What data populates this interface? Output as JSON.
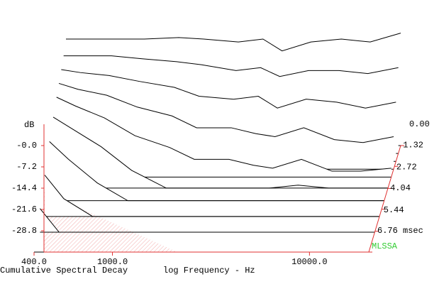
{
  "chart_data": {
    "type": "waterfall",
    "title": "Cumulative Spectral Decay",
    "x_label": "log Frequency - Hz",
    "y_label": "dB",
    "brand": "MLSSA",
    "log_x": true,
    "x": [
      400,
      500,
      700,
      1000,
      1500,
      2000,
      3000,
      4000,
      5000,
      7000,
      10000,
      14000,
      20000
    ],
    "xlim": [
      400,
      20000
    ],
    "xticks": [
      {
        "value": 400,
        "label": "400.0"
      },
      {
        "value": 1000,
        "label": "1000.0"
      },
      {
        "value": 10000,
        "label": "10000.0"
      }
    ],
    "ylim": [
      -36,
      7.2
    ],
    "yticks": [
      {
        "value": 0,
        "label": "-0.0"
      },
      -7.2,
      -14.4,
      -21.6,
      -28.8
    ],
    "zlim": [
      0,
      6.76
    ],
    "zticks": [
      {
        "value": 0,
        "label": "0.00"
      },
      1.32,
      2.72,
      4.04,
      5.44,
      {
        "value": 6.76,
        "label": "6.76 msec"
      }
    ],
    "axis_color": "#e03030",
    "line_color": "#000000",
    "series": [
      {
        "time": 0,
        "values": [
          0,
          0,
          0,
          0,
          0.5,
          0,
          -1,
          0,
          -4,
          -1,
          0,
          -1,
          2
        ]
      },
      {
        "time": 0.5,
        "values": [
          -3,
          -3,
          -3,
          -4,
          -5,
          -6,
          -8,
          -7,
          -10,
          -8,
          -8,
          -9,
          -7
        ]
      },
      {
        "time": 1.0,
        "values": [
          -5,
          -6,
          -7,
          -9,
          -11,
          -14,
          -15,
          -14,
          -18,
          -15,
          -16,
          -18,
          -16
        ]
      },
      {
        "time": 1.5,
        "values": [
          -7,
          -9,
          -11,
          -15,
          -18,
          -22,
          -22,
          -24,
          -25,
          -22,
          -26,
          -27,
          -25
        ]
      },
      {
        "time": 2.0,
        "values": [
          -9,
          -12,
          -16,
          -22,
          -26,
          -30,
          -30,
          -32,
          -33,
          -30,
          -34,
          -34,
          -33
        ]
      },
      {
        "time": 2.7,
        "values": [
          -12,
          -16,
          -22,
          -30,
          -36,
          -36,
          -36,
          -36,
          -36,
          -35,
          -36,
          -36,
          -36
        ]
      },
      {
        "time": 3.5,
        "values": [
          -16,
          -22,
          -30,
          -36,
          -36,
          -36,
          -36,
          -36,
          -36,
          -36,
          -36,
          -36,
          -36
        ]
      },
      {
        "time": 4.5,
        "values": [
          -22,
          -30,
          -36,
          -36,
          -36,
          -36,
          -36,
          -36,
          -36,
          -36,
          -36,
          -36,
          -36
        ]
      },
      {
        "time": 5.5,
        "values": [
          -28,
          -36,
          -36,
          -36,
          -36,
          -36,
          -36,
          -36,
          -36,
          -36,
          -36,
          -36,
          -36
        ]
      },
      {
        "time": 6.76,
        "values": [
          -36,
          -36,
          -36,
          -36,
          -36,
          -36,
          -36,
          -36,
          -36,
          -36,
          -36,
          -36,
          -36
        ]
      }
    ]
  }
}
